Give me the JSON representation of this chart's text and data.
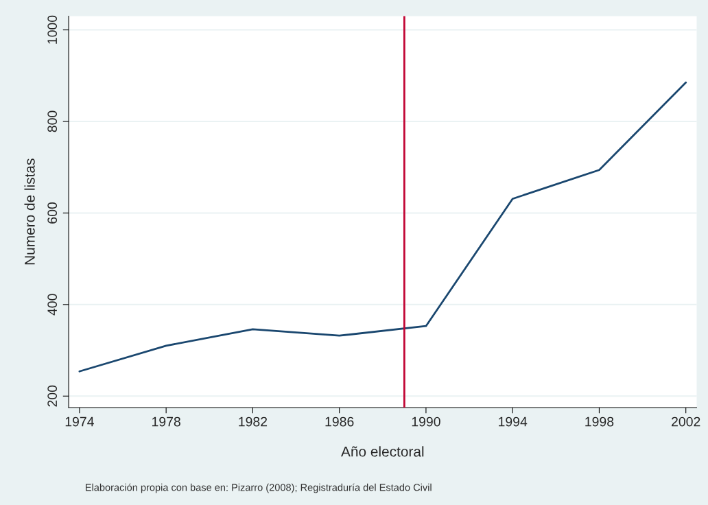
{
  "chart_data": {
    "type": "line",
    "xlabel": "Año electoral",
    "ylabel": "Numero de listas",
    "x": [
      1974,
      1978,
      1982,
      1986,
      1990,
      1994,
      1998,
      2002
    ],
    "series": [
      {
        "color": "#1a476f",
        "values": [
          254,
          310,
          346,
          332,
          353,
          631,
          694,
          885
        ]
      }
    ],
    "xlim": [
      1973.5,
      2002.5
    ],
    "xticks": [
      1974,
      1978,
      1982,
      1986,
      1990,
      1994,
      1998,
      2002
    ],
    "ylim": [
      175,
      1030
    ],
    "yticks": [
      200,
      400,
      600,
      800,
      1000
    ],
    "grid": "y",
    "marker": "none",
    "line_style": "solid",
    "ref_lines": [
      {
        "axis": "x",
        "value": 1989,
        "color": "#c10534"
      }
    ],
    "annotations": [
      "Elaboración propia con base en: Pizarro (2008); Registraduría del Estado Civil"
    ]
  }
}
